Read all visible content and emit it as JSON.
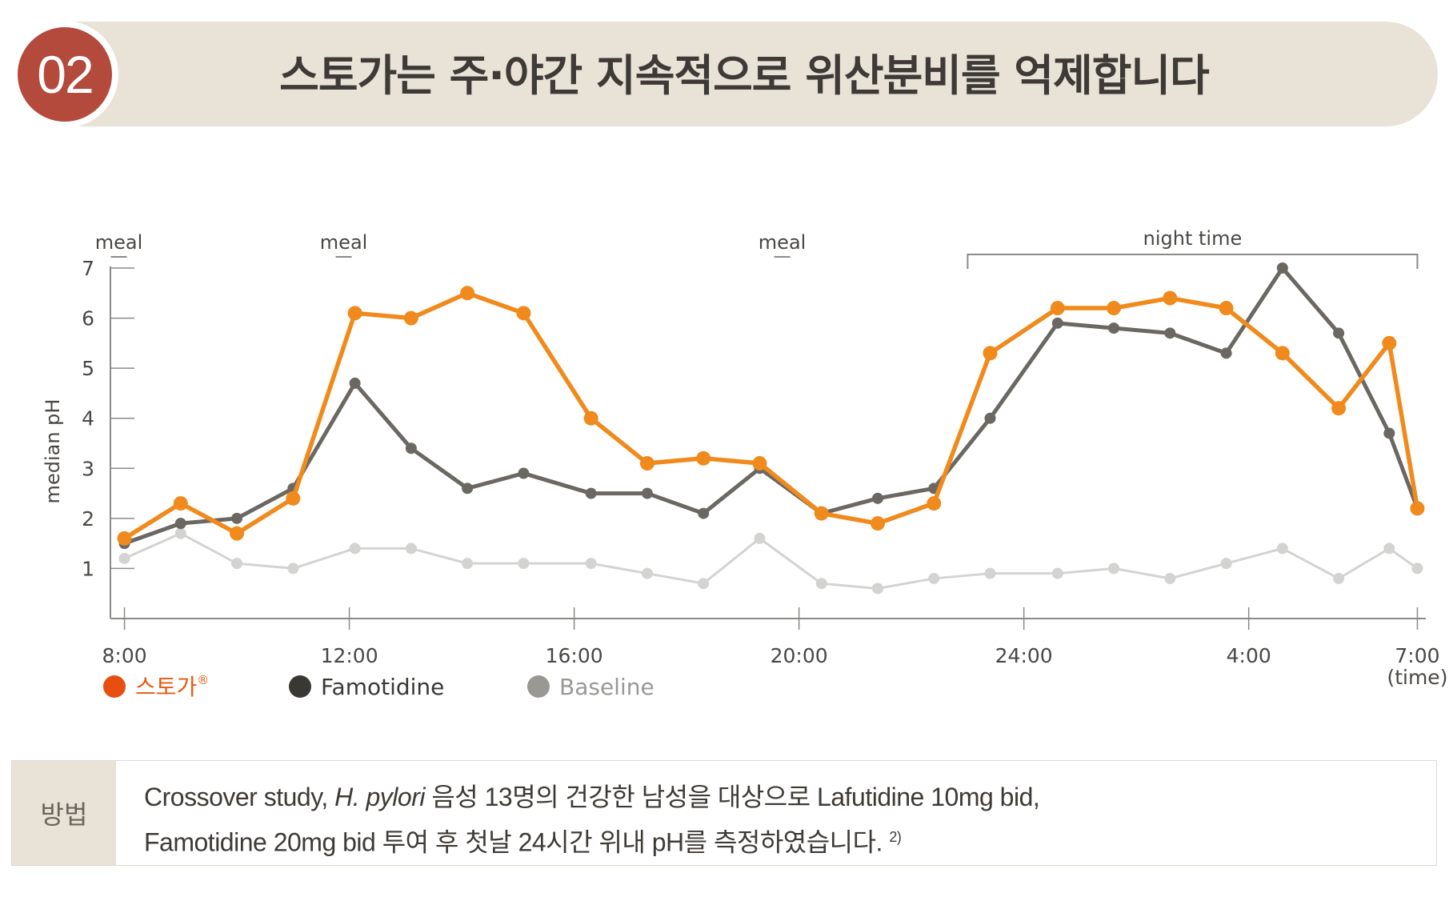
{
  "header": {
    "badge_number": "02",
    "title": "스토가는 주·야간 지속적으로 위산분비를 억제합니다"
  },
  "chart_data": {
    "type": "line",
    "ylabel": "median pH",
    "xlabel": "",
    "ylim": [
      0,
      7
    ],
    "yticks": [
      1,
      2,
      3,
      4,
      5,
      6,
      7
    ],
    "x_unit_label": "(time)",
    "xticks": [
      {
        "hour": 8,
        "label": "8:00"
      },
      {
        "hour": 12,
        "label": "12:00"
      },
      {
        "hour": 16,
        "label": "16:00"
      },
      {
        "hour": 20,
        "label": "20:00"
      },
      {
        "hour": 24,
        "label": "24:00"
      },
      {
        "hour": 28,
        "label": "4:00"
      },
      {
        "hour": 31,
        "label": "7:00"
      }
    ],
    "annotations": [
      {
        "label": "meal",
        "hour": 7.9
      },
      {
        "label": "meal",
        "hour": 11.9
      },
      {
        "label": "meal",
        "hour": 19.7
      },
      {
        "label": "night time",
        "start_hour": 23.0,
        "end_hour": 31.0
      }
    ],
    "series": [
      {
        "name": "스토가®",
        "color": "#f08a1c",
        "x": [
          8.0,
          9.0,
          10.0,
          11.0,
          12.1,
          13.1,
          14.1,
          15.1,
          16.3,
          17.3,
          18.3,
          19.3,
          20.4,
          21.4,
          22.4,
          23.4,
          24.6,
          25.6,
          26.6,
          27.6,
          28.6,
          29.6,
          30.5,
          31.0
        ],
        "values": [
          1.6,
          2.3,
          1.7,
          2.4,
          6.1,
          6.0,
          6.5,
          6.1,
          4.0,
          3.1,
          3.2,
          3.1,
          2.1,
          1.9,
          2.3,
          5.3,
          6.2,
          6.2,
          6.4,
          6.2,
          5.3,
          4.2,
          5.5,
          2.2
        ]
      },
      {
        "name": "Famotidine",
        "color": "#6b6864",
        "x": [
          8.0,
          9.0,
          10.0,
          11.0,
          12.1,
          13.1,
          14.1,
          15.1,
          16.3,
          17.3,
          18.3,
          19.3,
          20.4,
          21.4,
          22.4,
          23.4,
          24.6,
          25.6,
          26.6,
          27.6,
          28.6,
          29.6,
          30.5,
          31.0
        ],
        "values": [
          1.5,
          1.9,
          2.0,
          2.6,
          4.7,
          3.4,
          2.6,
          2.9,
          2.5,
          2.5,
          2.1,
          3.0,
          2.1,
          2.4,
          2.6,
          4.0,
          5.9,
          5.8,
          5.7,
          5.3,
          7.0,
          5.7,
          3.7,
          2.2
        ]
      },
      {
        "name": "Baseline",
        "color": "#d3d3d1",
        "x": [
          8.0,
          9.0,
          10.0,
          11.0,
          12.1,
          13.1,
          14.1,
          15.1,
          16.3,
          17.3,
          18.3,
          19.3,
          20.4,
          21.4,
          22.4,
          23.4,
          24.6,
          25.6,
          26.6,
          27.6,
          28.6,
          29.6,
          30.5,
          31.0
        ],
        "values": [
          1.2,
          1.7,
          1.1,
          1.0,
          1.4,
          1.4,
          1.1,
          1.1,
          1.1,
          0.9,
          0.7,
          1.6,
          0.7,
          0.6,
          0.8,
          0.9,
          0.9,
          1.0,
          0.8,
          1.1,
          1.4,
          0.8,
          1.4,
          1.0
        ]
      }
    ],
    "legend": [
      {
        "label": "스토가",
        "reg": "®",
        "color": "#e85a10",
        "dot": "#e84e0f"
      },
      {
        "label": "Famotidine",
        "color": "#3a3835",
        "dot": "#3a3835"
      },
      {
        "label": "Baseline",
        "color": "#9a9895",
        "dot": "#9a9895"
      }
    ]
  },
  "method": {
    "label": "방법",
    "line1_a": "Crossover study, ",
    "line1_italic": "H. pylori",
    "line1_b": " 음성 13명의 건강한 남성을 대상으로 Lafutidine 10mg bid,",
    "line2": "Famotidine 20mg bid 투여 후 첫날 24시간 위내 pH를 측정하였습니다.",
    "ref": "2)"
  }
}
